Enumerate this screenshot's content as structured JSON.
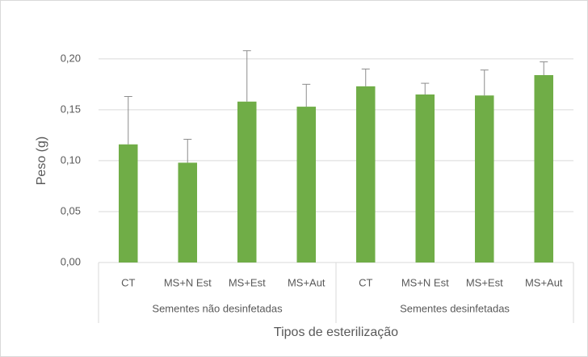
{
  "chart_data": {
    "type": "bar",
    "y_label": "Peso (g)",
    "x_label": "Tipos de esterilização",
    "groups": [
      {
        "label": "Sementes não desinfetadas",
        "categories": [
          "CT",
          "MS+N Est",
          "MS+Est",
          "MS+Aut"
        ]
      },
      {
        "label": "Sementes desinfetadas",
        "categories": [
          "CT",
          "MS+N Est",
          "MS+Est",
          "MS+Aut"
        ]
      }
    ],
    "values": [
      0.116,
      0.098,
      0.158,
      0.153,
      0.173,
      0.165,
      0.164,
      0.184
    ],
    "errors": [
      0.047,
      0.023,
      0.05,
      0.022,
      0.017,
      0.011,
      0.025,
      0.013
    ],
    "color": "#70ad47",
    "ylim": [
      0,
      0.23
    ],
    "yticks": [
      {
        "value": 0,
        "label": "0,00"
      },
      {
        "value": 0.05,
        "label": "0,05"
      },
      {
        "value": 0.1,
        "label": "0,10"
      },
      {
        "value": 0.15,
        "label": "0,15"
      },
      {
        "value": 0.2,
        "label": "0,20"
      }
    ],
    "grid": true
  }
}
